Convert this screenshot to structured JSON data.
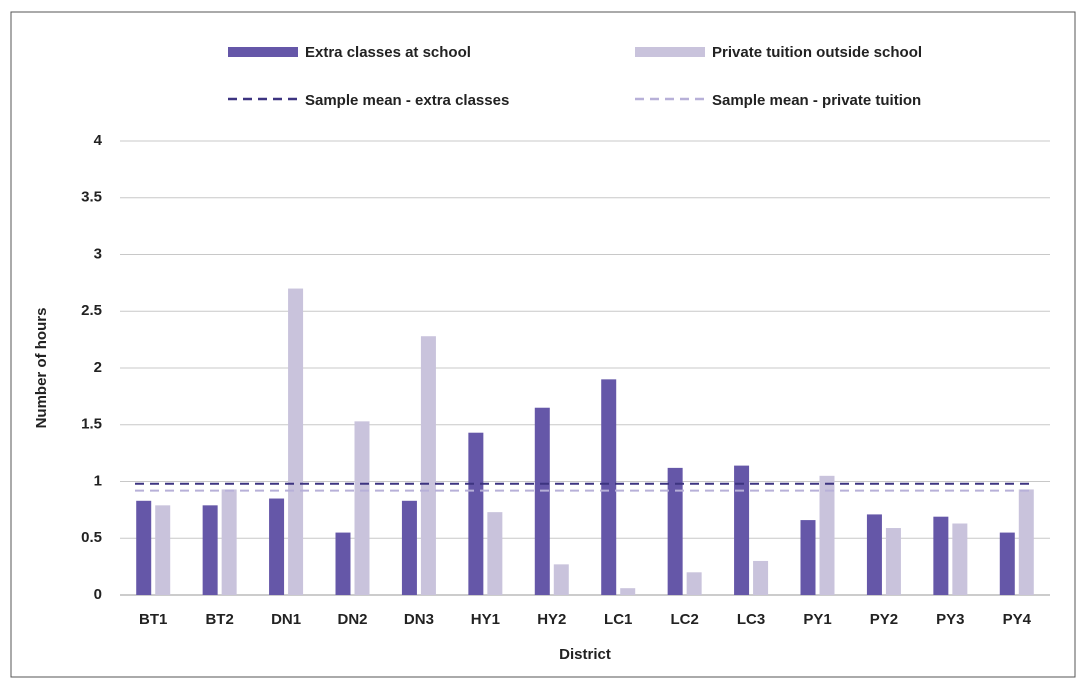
{
  "chart_data": {
    "type": "bar",
    "xlabel": "District",
    "ylabel": "Number of hours",
    "categories": [
      "BT1",
      "BT2",
      "DN1",
      "DN2",
      "DN3",
      "HY1",
      "HY2",
      "LC1",
      "LC2",
      "LC3",
      "PY1",
      "PY2",
      "PY3",
      "PY4"
    ],
    "series": [
      {
        "name": "Extra classes at school",
        "color": "#6557a8",
        "values": [
          0.83,
          0.79,
          0.85,
          0.55,
          0.83,
          1.43,
          1.65,
          1.9,
          1.12,
          1.14,
          0.66,
          0.71,
          0.69,
          0.55
        ]
      },
      {
        "name": "Private tuition outside school",
        "color": "#c9c3dc",
        "values": [
          0.79,
          0.93,
          2.7,
          1.53,
          2.28,
          0.73,
          0.27,
          0.06,
          0.2,
          0.3,
          1.05,
          0.59,
          0.63,
          0.93
        ]
      }
    ],
    "mean_lines": [
      {
        "name": "Sample mean - extra classes",
        "color": "#3d3480",
        "value": 0.98
      },
      {
        "name": "Sample mean - private tuition",
        "color": "#b7b0d8",
        "value": 0.92
      }
    ],
    "ylim": [
      0,
      4
    ],
    "yticks": [
      0,
      0.5,
      1,
      1.5,
      2,
      2.5,
      3,
      3.5,
      4
    ],
    "grid": true
  }
}
